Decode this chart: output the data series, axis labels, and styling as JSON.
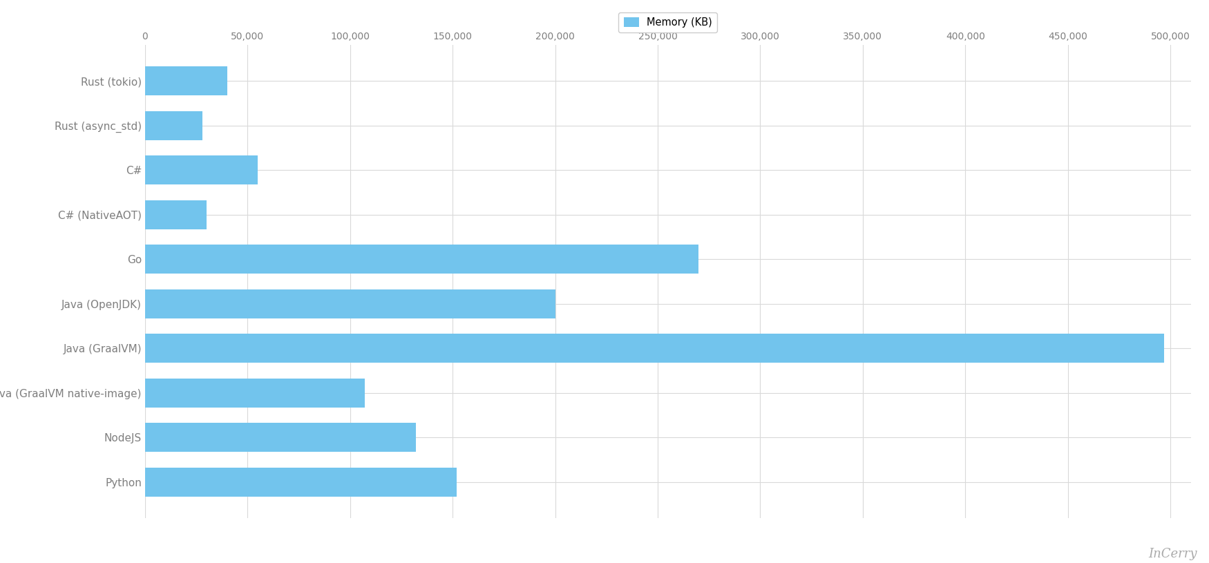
{
  "categories": [
    "Python",
    "NodeJS",
    "Java (GraalVM native-image)",
    "Java (GraalVM)",
    "Java (OpenJDK)",
    "Go",
    "C# (NativeAOT)",
    "C#",
    "Rust (async_std)",
    "Rust (tokio)"
  ],
  "values": [
    152000,
    132000,
    107000,
    497000,
    200000,
    270000,
    30000,
    55000,
    28000,
    40000
  ],
  "bar_color": "#72c4ed",
  "legend_label": "Memory (KB)",
  "background_color": "#ffffff",
  "grid_color": "#d9d9d9",
  "xlim": [
    0,
    510000
  ],
  "bar_height": 0.65,
  "tick_label_color": "#7f7f7f",
  "label_fontsize": 11,
  "tick_fontsize": 10,
  "watermark": "InCerry",
  "watermark_color": "#aaaaaa"
}
